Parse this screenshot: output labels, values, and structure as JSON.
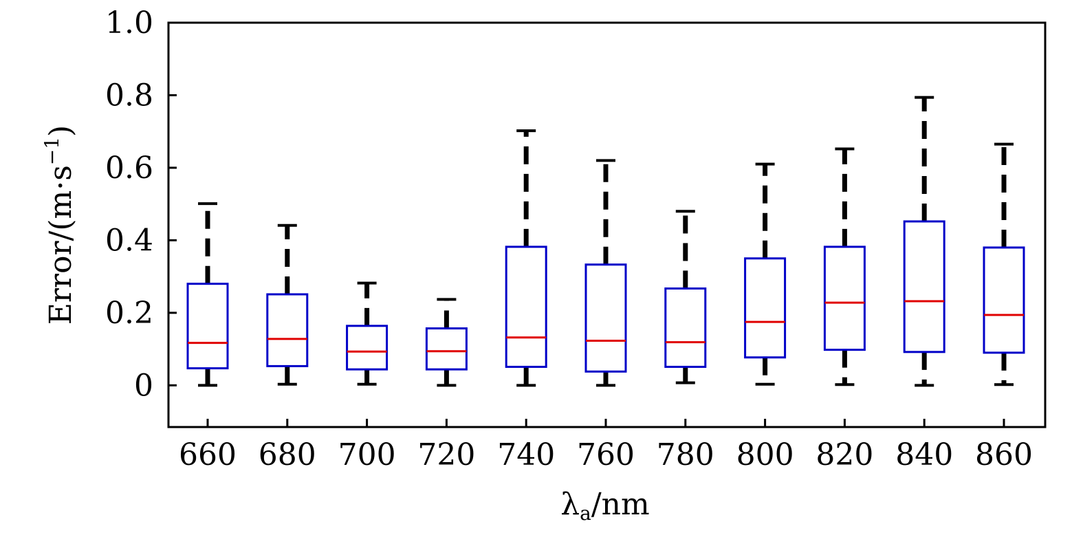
{
  "chart_data": {
    "type": "box",
    "xlabel": "λa/nm",
    "xlabel_parts": {
      "base": "λ",
      "sub": "a",
      "rest": "/nm"
    },
    "ylabel": "Error/(m·s⁻¹)",
    "ylabel_parts": {
      "pre": "Error/(m·s",
      "sup": "−1",
      "post": ")"
    },
    "ylim": [
      -0.115,
      1.0
    ],
    "y_ticks": [
      0,
      0.2,
      0.4,
      0.6,
      0.8,
      1.0
    ],
    "y_tick_labels": [
      "0",
      "0.2",
      "0.4",
      "0.6",
      "0.8",
      "1.0"
    ],
    "grid": false,
    "colors": {
      "box": "#0000c8",
      "median": "#e00000",
      "whisker": "#000000"
    },
    "categories": [
      "660",
      "680",
      "700",
      "720",
      "740",
      "760",
      "780",
      "800",
      "820",
      "840",
      "860"
    ],
    "boxes": [
      {
        "min": 0.0,
        "q1": 0.047,
        "median": 0.117,
        "q3": 0.28,
        "max": 0.501
      },
      {
        "min": 0.003,
        "q1": 0.053,
        "median": 0.128,
        "q3": 0.251,
        "max": 0.441
      },
      {
        "min": 0.003,
        "q1": 0.044,
        "median": 0.093,
        "q3": 0.164,
        "max": 0.282
      },
      {
        "min": 0.0,
        "q1": 0.044,
        "median": 0.094,
        "q3": 0.157,
        "max": 0.237
      },
      {
        "min": 0.0,
        "q1": 0.051,
        "median": 0.132,
        "q3": 0.382,
        "max": 0.702
      },
      {
        "min": 0.0,
        "q1": 0.038,
        "median": 0.123,
        "q3": 0.333,
        "max": 0.62
      },
      {
        "min": 0.007,
        "q1": 0.051,
        "median": 0.119,
        "q3": 0.267,
        "max": 0.48
      },
      {
        "min": 0.003,
        "q1": 0.077,
        "median": 0.175,
        "q3": 0.35,
        "max": 0.61
      },
      {
        "min": 0.002,
        "q1": 0.098,
        "median": 0.228,
        "q3": 0.382,
        "max": 0.652
      },
      {
        "min": 0.0,
        "q1": 0.092,
        "median": 0.232,
        "q3": 0.452,
        "max": 0.794
      },
      {
        "min": 0.002,
        "q1": 0.09,
        "median": 0.194,
        "q3": 0.38,
        "max": 0.665
      }
    ]
  }
}
